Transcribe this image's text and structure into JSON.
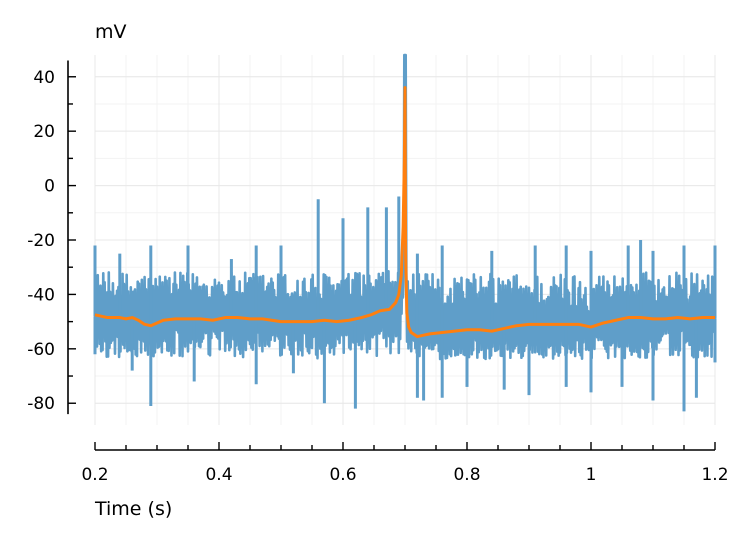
{
  "chart_data": {
    "type": "line",
    "title": "",
    "xlabel": "Time (s)",
    "ylabel": "mV",
    "xlim": [
      0.2,
      1.2
    ],
    "ylim": [
      -88,
      48
    ],
    "grid": true,
    "legend": "none",
    "x_ticks": [
      0.2,
      0.4,
      0.6,
      0.8,
      1.0,
      1.2
    ],
    "x_tick_labels": [
      "0.2",
      "0.4",
      "0.6",
      "0.8",
      "1",
      "1.2"
    ],
    "y_ticks": [
      -80,
      -60,
      -40,
      -20,
      0,
      20,
      40
    ],
    "y_tick_labels": [
      "-80",
      "-60",
      "-40",
      "-20",
      "0",
      "20",
      "40"
    ],
    "colors": {
      "raw": "#5f9ec9",
      "smoothed": "#ff7f0e",
      "grid": "#e8e8e8"
    },
    "series": [
      {
        "style": "noisy-trace",
        "baseline": [
          [
            0.2,
            -48
          ],
          [
            0.25,
            -49
          ],
          [
            0.3,
            -50
          ],
          [
            0.35,
            -49
          ],
          [
            0.4,
            -48
          ],
          [
            0.5,
            -50
          ],
          [
            0.6,
            -50
          ],
          [
            0.65,
            -47
          ],
          [
            0.68,
            -44
          ],
          [
            0.69,
            -38
          ],
          [
            0.7,
            -30
          ],
          [
            0.705,
            -50
          ],
          [
            0.72,
            -55
          ],
          [
            0.8,
            -53
          ],
          [
            0.9,
            -52
          ],
          [
            1.0,
            -51
          ],
          [
            1.1,
            -48
          ],
          [
            1.2,
            -49
          ]
        ],
        "band_low": -65,
        "band_high": -30,
        "peaks": [
          [
            0.2,
            -22
          ],
          [
            0.24,
            -25
          ],
          [
            0.29,
            -22
          ],
          [
            0.35,
            -22
          ],
          [
            0.42,
            -27
          ],
          [
            0.46,
            -22
          ],
          [
            0.5,
            -22
          ],
          [
            0.56,
            -5
          ],
          [
            0.6,
            -12
          ],
          [
            0.64,
            -8
          ],
          [
            0.67,
            -8
          ],
          [
            0.69,
            -4
          ],
          [
            0.7,
            48
          ],
          [
            0.72,
            -25
          ],
          [
            0.76,
            -22
          ],
          [
            0.84,
            -24
          ],
          [
            0.91,
            -22
          ],
          [
            0.96,
            -22
          ],
          [
            1.0,
            -24
          ],
          [
            1.06,
            -22
          ],
          [
            1.08,
            -20
          ],
          [
            1.1,
            -24
          ],
          [
            1.15,
            -22
          ],
          [
            1.2,
            -22
          ]
        ],
        "troughs": [
          [
            0.2,
            -62
          ],
          [
            0.26,
            -68
          ],
          [
            0.29,
            -81
          ],
          [
            0.36,
            -72
          ],
          [
            0.46,
            -73
          ],
          [
            0.52,
            -69
          ],
          [
            0.57,
            -80
          ],
          [
            0.62,
            -82
          ],
          [
            0.72,
            -78
          ],
          [
            0.73,
            -79
          ],
          [
            0.76,
            -78
          ],
          [
            0.8,
            -74
          ],
          [
            0.86,
            -75
          ],
          [
            0.9,
            -77
          ],
          [
            0.96,
            -74
          ],
          [
            1.0,
            -76
          ],
          [
            1.05,
            -74
          ],
          [
            1.1,
            -79
          ],
          [
            1.15,
            -83
          ],
          [
            1.17,
            -78
          ],
          [
            1.2,
            -65
          ]
        ]
      },
      {
        "style": "smoothed",
        "points": [
          [
            0.2,
            -47.5
          ],
          [
            0.21,
            -48
          ],
          [
            0.22,
            -48.5
          ],
          [
            0.24,
            -48.5
          ],
          [
            0.25,
            -49
          ],
          [
            0.26,
            -48.5
          ],
          [
            0.27,
            -49.5
          ],
          [
            0.28,
            -51
          ],
          [
            0.29,
            -51.5
          ],
          [
            0.3,
            -50.5
          ],
          [
            0.31,
            -49.5
          ],
          [
            0.33,
            -49
          ],
          [
            0.35,
            -49
          ],
          [
            0.37,
            -49
          ],
          [
            0.39,
            -49.5
          ],
          [
            0.41,
            -48.5
          ],
          [
            0.43,
            -48.5
          ],
          [
            0.45,
            -49
          ],
          [
            0.47,
            -49
          ],
          [
            0.5,
            -50
          ],
          [
            0.53,
            -50
          ],
          [
            0.55,
            -50
          ],
          [
            0.57,
            -49.5
          ],
          [
            0.59,
            -50
          ],
          [
            0.61,
            -49.5
          ],
          [
            0.63,
            -48.5
          ],
          [
            0.645,
            -47.5
          ],
          [
            0.66,
            -46
          ],
          [
            0.675,
            -45.5
          ],
          [
            0.685,
            -43
          ],
          [
            0.69,
            -40
          ],
          [
            0.694,
            -33
          ],
          [
            0.697,
            -15
          ],
          [
            0.699,
            10
          ],
          [
            0.7,
            36
          ],
          [
            0.701,
            -25
          ],
          [
            0.703,
            -47
          ],
          [
            0.706,
            -52
          ],
          [
            0.71,
            -54
          ],
          [
            0.72,
            -55.5
          ],
          [
            0.73,
            -55
          ],
          [
            0.74,
            -54.5
          ],
          [
            0.76,
            -54
          ],
          [
            0.78,
            -53.5
          ],
          [
            0.8,
            -53
          ],
          [
            0.82,
            -53
          ],
          [
            0.84,
            -53.5
          ],
          [
            0.86,
            -52.5
          ],
          [
            0.88,
            -51.5
          ],
          [
            0.9,
            -51
          ],
          [
            0.92,
            -51
          ],
          [
            0.95,
            -51
          ],
          [
            0.98,
            -51
          ],
          [
            1.0,
            -52
          ],
          [
            1.02,
            -50.5
          ],
          [
            1.04,
            -49.5
          ],
          [
            1.06,
            -48.5
          ],
          [
            1.08,
            -48.5
          ],
          [
            1.1,
            -49
          ],
          [
            1.12,
            -49
          ],
          [
            1.14,
            -48.5
          ],
          [
            1.16,
            -49
          ],
          [
            1.18,
            -48.5
          ],
          [
            1.2,
            -48.5
          ]
        ]
      }
    ]
  }
}
